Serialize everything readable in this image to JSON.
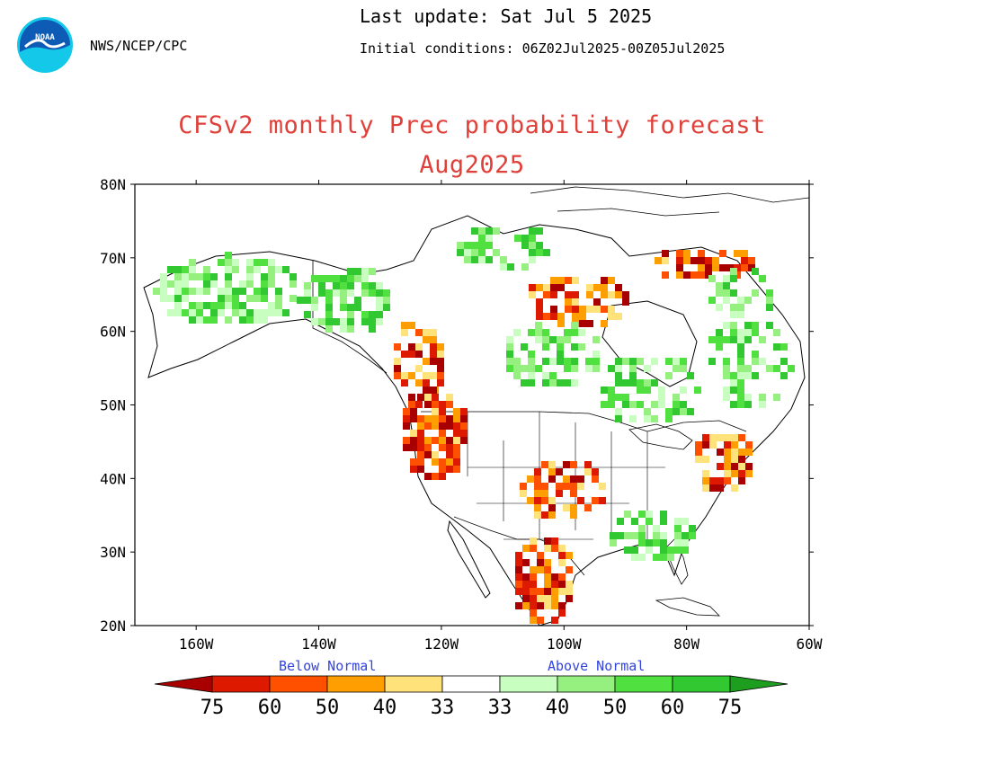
{
  "header": {
    "agency": "NWS/NCEP/CPC",
    "last_update": "Last update: Sat Jul 5 2025",
    "initial_conditions": "Initial conditions: 06Z02Jul2025-00Z05Jul2025",
    "logo_text": "NOAA"
  },
  "title": {
    "line1": "CFSv2 monthly Prec probability forecast",
    "line2": "Aug2025"
  },
  "map": {
    "lat_labels": [
      "80N",
      "70N",
      "60N",
      "50N",
      "40N",
      "30N",
      "20N"
    ],
    "lon_labels": [
      "160W",
      "140W",
      "120W",
      "100W",
      "80W",
      "60W"
    ],
    "lat_range": [
      20,
      80
    ],
    "lon_range": [
      -170,
      -60
    ]
  },
  "legend": {
    "below_label": "Below Normal",
    "above_label": "Above Normal",
    "tick_labels": [
      "75",
      "60",
      "50",
      "40",
      "33",
      "33",
      "40",
      "50",
      "60",
      "75"
    ],
    "below_colors": [
      "#a80000",
      "#dd1a00",
      "#ff5000",
      "#ff9e00",
      "#ffe27a"
    ],
    "above_colors": [
      "#c8ffc0",
      "#96f080",
      "#50e040",
      "#32c832",
      "#1e9e1e"
    ],
    "neutral_color": "#ffffff"
  },
  "colors": {
    "title": "#e0403a",
    "category_labels": "#3344dd",
    "noaa_blue": "#0e5bb5",
    "noaa_cyan": "#13c8e8"
  }
}
